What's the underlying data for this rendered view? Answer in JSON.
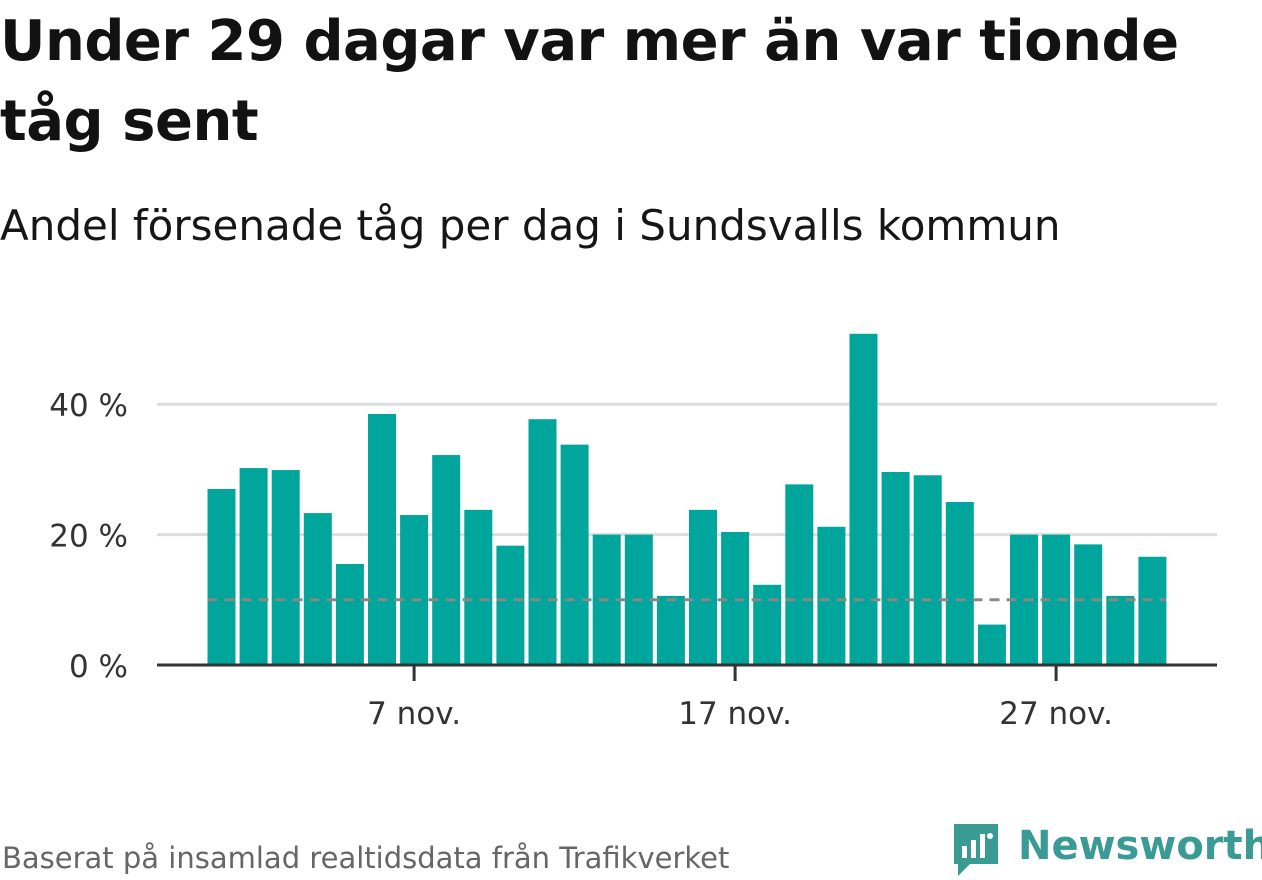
{
  "title": "Under 29 dagar var mer än var tionde tåg sent",
  "subtitle": "Andel försenade tåg per dag i Sundsvalls kommun",
  "source": "Baserat på insamlad realtidsdata från Trafikverket",
  "logo_text": "Newsworthy",
  "colors": {
    "bar": "#00a59c",
    "reference_line": "#888888",
    "grid": "#dddddd",
    "axis": "#333333",
    "logo": "#3a9a94"
  },
  "chart_data": {
    "type": "bar",
    "title": "Under 29 dagar var mer än var tionde tåg sent",
    "subtitle": "Andel försenade tåg per dag i Sundsvalls kommun",
    "xlabel": "",
    "ylabel": "",
    "x_day_range": [
      1,
      30
    ],
    "categories": [
      1,
      2,
      3,
      4,
      5,
      6,
      7,
      8,
      9,
      10,
      11,
      12,
      13,
      14,
      15,
      16,
      17,
      18,
      19,
      20,
      21,
      22,
      23,
      24,
      25,
      26,
      27,
      28,
      29,
      30
    ],
    "values": [
      27,
      30.2,
      29.9,
      23.3,
      15.5,
      38.5,
      23,
      32.2,
      23.8,
      18.3,
      37.7,
      33.8,
      20,
      20,
      10.6,
      23.8,
      20.4,
      12.3,
      27.7,
      21.2,
      50.8,
      29.6,
      29.1,
      25,
      6.2,
      20,
      20,
      18.5,
      10.6,
      16.6
    ],
    "x_ticks": [
      {
        "day": 7,
        "label": "7 nov."
      },
      {
        "day": 17,
        "label": "17 nov."
      },
      {
        "day": 27,
        "label": "27 nov."
      }
    ],
    "y_ticks": [
      {
        "value": 0,
        "label": "0 %"
      },
      {
        "value": 20,
        "label": "20 %"
      },
      {
        "value": 40,
        "label": "40 %"
      }
    ],
    "ylim": [
      0,
      55
    ],
    "reference_line": 10,
    "grid": true
  }
}
